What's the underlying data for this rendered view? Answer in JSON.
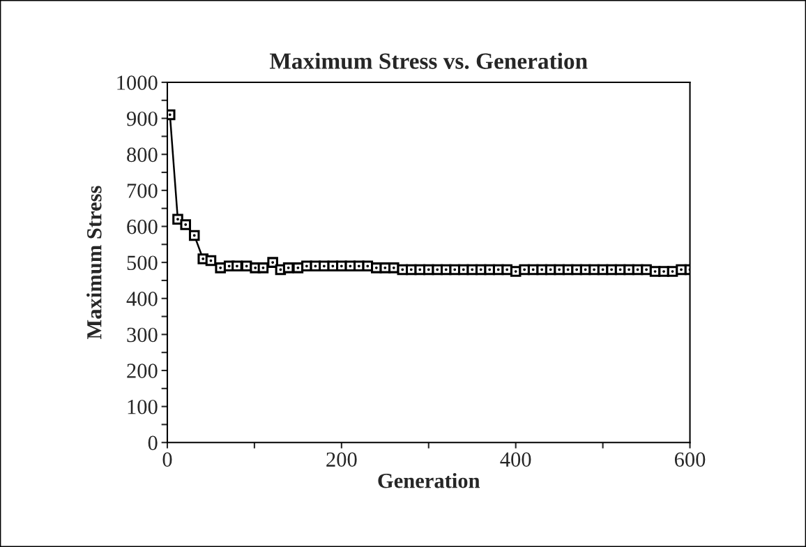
{
  "chart_data": {
    "type": "line",
    "title": "Maximum Stress vs. Generation",
    "xlabel": "Generation",
    "ylabel": "Maximum Stress",
    "x": [
      3,
      12,
      21,
      31,
      41,
      50,
      61,
      71,
      80,
      91,
      101,
      110,
      121,
      130,
      139,
      150,
      160,
      170,
      180,
      190,
      200,
      210,
      220,
      230,
      240,
      250,
      260,
      270,
      280,
      290,
      300,
      310,
      320,
      330,
      340,
      350,
      360,
      370,
      380,
      390,
      400,
      410,
      420,
      430,
      440,
      450,
      460,
      470,
      480,
      490,
      500,
      510,
      520,
      530,
      540,
      550,
      560,
      570,
      580,
      590,
      600
    ],
    "series": [
      {
        "color": "#000000",
        "values": [
          910,
          620,
          605,
          575,
          510,
          505,
          485,
          490,
          490,
          490,
          485,
          485,
          500,
          480,
          485,
          485,
          490,
          490,
          490,
          490,
          490,
          490,
          490,
          490,
          485,
          485,
          485,
          480,
          480,
          480,
          480,
          480,
          480,
          480,
          480,
          480,
          480,
          480,
          480,
          480,
          475,
          480,
          480,
          480,
          480,
          480,
          480,
          480,
          480,
          480,
          480,
          480,
          480,
          480,
          480,
          480,
          475,
          475,
          475,
          480,
          480
        ]
      }
    ],
    "xlim": [
      0,
      600
    ],
    "xticks": [
      0,
      {
        "value": 100,
        "label": null
      },
      200,
      {
        "value": 300,
        "label": null
      },
      400,
      {
        "value": 500,
        "label": null
      },
      600
    ],
    "ylim": [
      0,
      1000
    ],
    "yticks": [
      0,
      {
        "value": 50,
        "label": null
      },
      100,
      {
        "value": 150,
        "label": null
      },
      200,
      {
        "value": 250,
        "label": null
      },
      300,
      {
        "value": 350,
        "label": null
      },
      400,
      {
        "value": 450,
        "label": null
      },
      500,
      {
        "value": 550,
        "label": null
      },
      600,
      {
        "value": 650,
        "label": null
      },
      700,
      {
        "value": 750,
        "label": null
      },
      800,
      {
        "value": 850,
        "label": null
      },
      900,
      {
        "value": 950,
        "label": null
      },
      1000
    ],
    "grid": false,
    "marker": "square",
    "line_style": "solid"
  }
}
